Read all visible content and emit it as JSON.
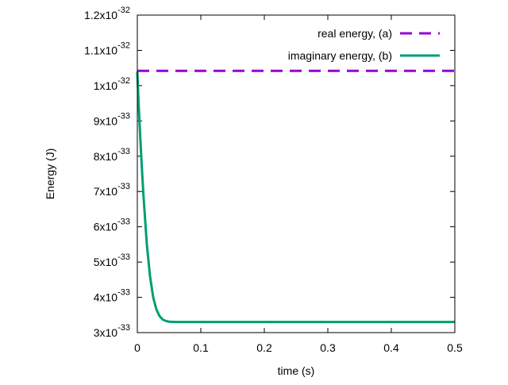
{
  "chart_data": {
    "type": "line",
    "xlabel": "time (s)",
    "ylabel": "Energy (J)",
    "xlim": [
      0,
      0.5
    ],
    "ylim": [
      3e-33,
      1.2e-32
    ],
    "x_ticks": [
      0,
      0.1,
      0.2,
      0.3,
      0.4,
      0.5
    ],
    "x_tick_labels": [
      "0",
      "0.1",
      "0.2",
      "0.3",
      "0.4",
      "0.5"
    ],
    "y_ticks": [
      {
        "value": 3e-33,
        "mantissa": "3x10",
        "exponent": "-33"
      },
      {
        "value": 4e-33,
        "mantissa": "4x10",
        "exponent": "-33"
      },
      {
        "value": 5e-33,
        "mantissa": "5x10",
        "exponent": "-33"
      },
      {
        "value": 6e-33,
        "mantissa": "6x10",
        "exponent": "-33"
      },
      {
        "value": 7e-33,
        "mantissa": "7x10",
        "exponent": "-33"
      },
      {
        "value": 8e-33,
        "mantissa": "8x10",
        "exponent": "-33"
      },
      {
        "value": 9e-33,
        "mantissa": "9x10",
        "exponent": "-33"
      },
      {
        "value": 1e-32,
        "mantissa": "1x10",
        "exponent": "-32"
      },
      {
        "value": 1.1e-32,
        "mantissa": "1.1x10",
        "exponent": "-32"
      },
      {
        "value": 1.2e-32,
        "mantissa": "1.2x10",
        "exponent": "-32"
      }
    ],
    "grid": false,
    "legend_position": "top-right",
    "series": [
      {
        "name": "real energy, (a)",
        "style": "dashed",
        "color": "#9400d3",
        "x": [
          0,
          0.5
        ],
        "y": [
          1.042e-32,
          1.042e-32
        ]
      },
      {
        "name": "imaginary energy, (b)",
        "style": "solid",
        "color": "#009e73",
        "x": [
          0,
          0.002,
          0.005,
          0.008,
          0.01,
          0.015,
          0.02,
          0.025,
          0.03,
          0.035,
          0.04,
          0.045,
          0.05,
          0.06,
          0.07,
          0.08,
          0.1,
          0.2,
          0.3,
          0.4,
          0.5
        ],
        "y": [
          1.04e-32,
          9.5e-33,
          8.4e-33,
          7.4e-33,
          6.8e-33,
          5.5e-33,
          4.6e-33,
          4e-33,
          3.66e-33,
          3.47e-33,
          3.37e-33,
          3.33e-33,
          3.31e-33,
          3.3e-33,
          3.3e-33,
          3.3e-33,
          3.3e-33,
          3.3e-33,
          3.3e-33,
          3.3e-33,
          3.3e-33
        ]
      }
    ]
  }
}
